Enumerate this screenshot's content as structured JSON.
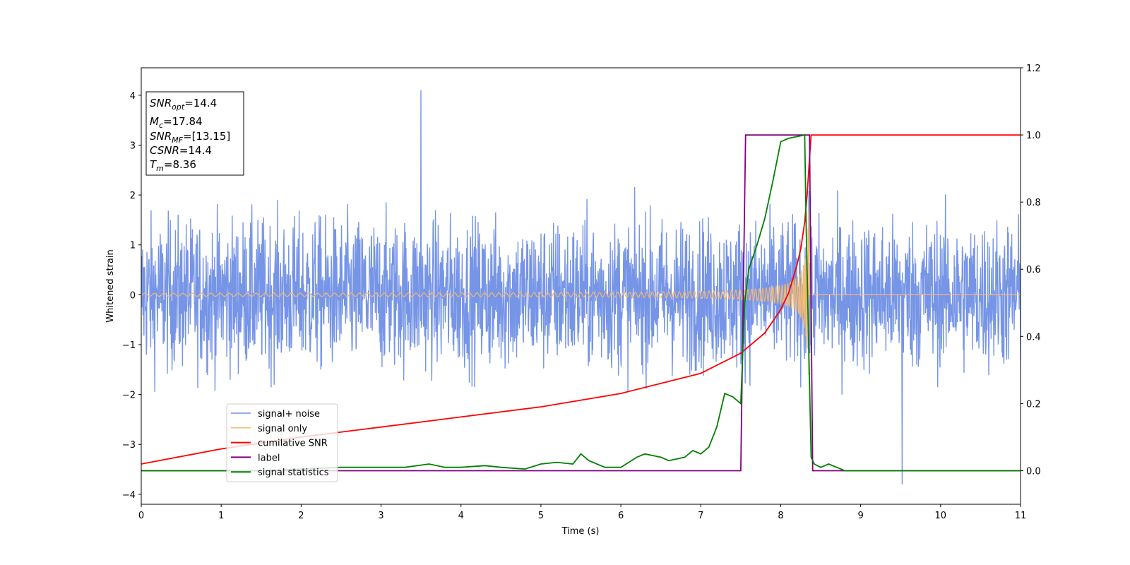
{
  "chart_data": {
    "type": "line",
    "xlabel": "Time (s)",
    "ylabel": "Whitened strain",
    "xlim": [
      0,
      11
    ],
    "ylim_left": [
      -4.2,
      4.55
    ],
    "ylim_right": [
      -0.1,
      1.2
    ],
    "xticks": [
      "0",
      "1",
      "2",
      "3",
      "4",
      "5",
      "6",
      "7",
      "8",
      "9",
      "10",
      "11"
    ],
    "yticks_left": [
      "−4",
      "−3",
      "−2",
      "−1",
      "0",
      "1",
      "2",
      "3",
      "4"
    ],
    "yticks_right": [
      "0.0",
      "0.2",
      "0.4",
      "0.6",
      "0.8",
      "1.0",
      "1.2"
    ],
    "grid": false,
    "legend_position": "lower-left",
    "annotation": {
      "lines": [
        {
          "sym": "SNR",
          "sub": "opt",
          "value": "=14.4"
        },
        {
          "sym": "M",
          "sub": "c",
          "value": "=17.84"
        },
        {
          "sym": "SNR",
          "sub": "MF",
          "value": "=[13.15]"
        },
        {
          "sym": "CSNR",
          "sub": "",
          "value": "=14.4"
        },
        {
          "sym": "T",
          "sub": "m",
          "value": "=8.36"
        }
      ]
    },
    "series": [
      {
        "name": "signal+ noise",
        "axis": "left",
        "color": "#6f8fe6",
        "description": "noise band roughly ±2.5, peaks up to 4.15 at t≈3.5, dips to −3.8 at t≈9.5"
      },
      {
        "name": "signal only",
        "axis": "left",
        "color": "#f4b870",
        "chirp": {
          "start": 0,
          "merger": 8.36,
          "amp_start": 0.02,
          "amp_peak": 1.75
        }
      },
      {
        "name": "cumilative SNR",
        "axis": "right",
        "color": "#ff0000",
        "x": [
          0,
          1,
          2,
          3,
          4,
          5,
          6,
          6.5,
          7,
          7.5,
          7.8,
          8.0,
          8.1,
          8.2,
          8.25,
          8.3,
          8.33,
          8.36,
          8.38,
          11
        ],
        "y": [
          0.02,
          0.065,
          0.1,
          0.13,
          0.16,
          0.19,
          0.23,
          0.26,
          0.29,
          0.35,
          0.41,
          0.48,
          0.53,
          0.61,
          0.66,
          0.74,
          0.82,
          0.93,
          1.0,
          1.0
        ]
      },
      {
        "name": "label",
        "axis": "right",
        "color": "#800080",
        "x": [
          0,
          7.5,
          7.56,
          8.36,
          8.4,
          11
        ],
        "y": [
          0.0,
          0.0,
          1.0,
          1.0,
          0.0,
          0.0
        ]
      },
      {
        "name": "signal statistics",
        "axis": "right",
        "color": "#008000",
        "x": [
          0,
          0.5,
          1,
          1.5,
          2,
          2.5,
          3,
          3.3,
          3.6,
          3.8,
          4,
          4.3,
          4.5,
          4.8,
          5,
          5.2,
          5.4,
          5.5,
          5.6,
          5.8,
          6,
          6.2,
          6.3,
          6.5,
          6.6,
          6.8,
          6.9,
          7.0,
          7.1,
          7.2,
          7.3,
          7.4,
          7.5,
          7.55,
          7.6,
          7.7,
          7.8,
          7.9,
          8.0,
          8.1,
          8.2,
          8.3,
          8.32,
          8.38,
          8.42,
          8.5,
          8.6,
          8.7,
          8.8,
          9.0,
          11
        ],
        "y": [
          0.0,
          0.0,
          0.0,
          0.0,
          0.005,
          0.01,
          0.01,
          0.01,
          0.02,
          0.01,
          0.01,
          0.015,
          0.01,
          0.005,
          0.02,
          0.025,
          0.02,
          0.05,
          0.03,
          0.01,
          0.01,
          0.04,
          0.05,
          0.04,
          0.03,
          0.04,
          0.06,
          0.05,
          0.07,
          0.13,
          0.23,
          0.22,
          0.2,
          0.5,
          0.6,
          0.67,
          0.75,
          0.86,
          0.98,
          0.99,
          0.995,
          1.0,
          0.7,
          0.04,
          0.02,
          0.01,
          0.02,
          0.01,
          0.0,
          0.0,
          0.0
        ]
      }
    ]
  }
}
